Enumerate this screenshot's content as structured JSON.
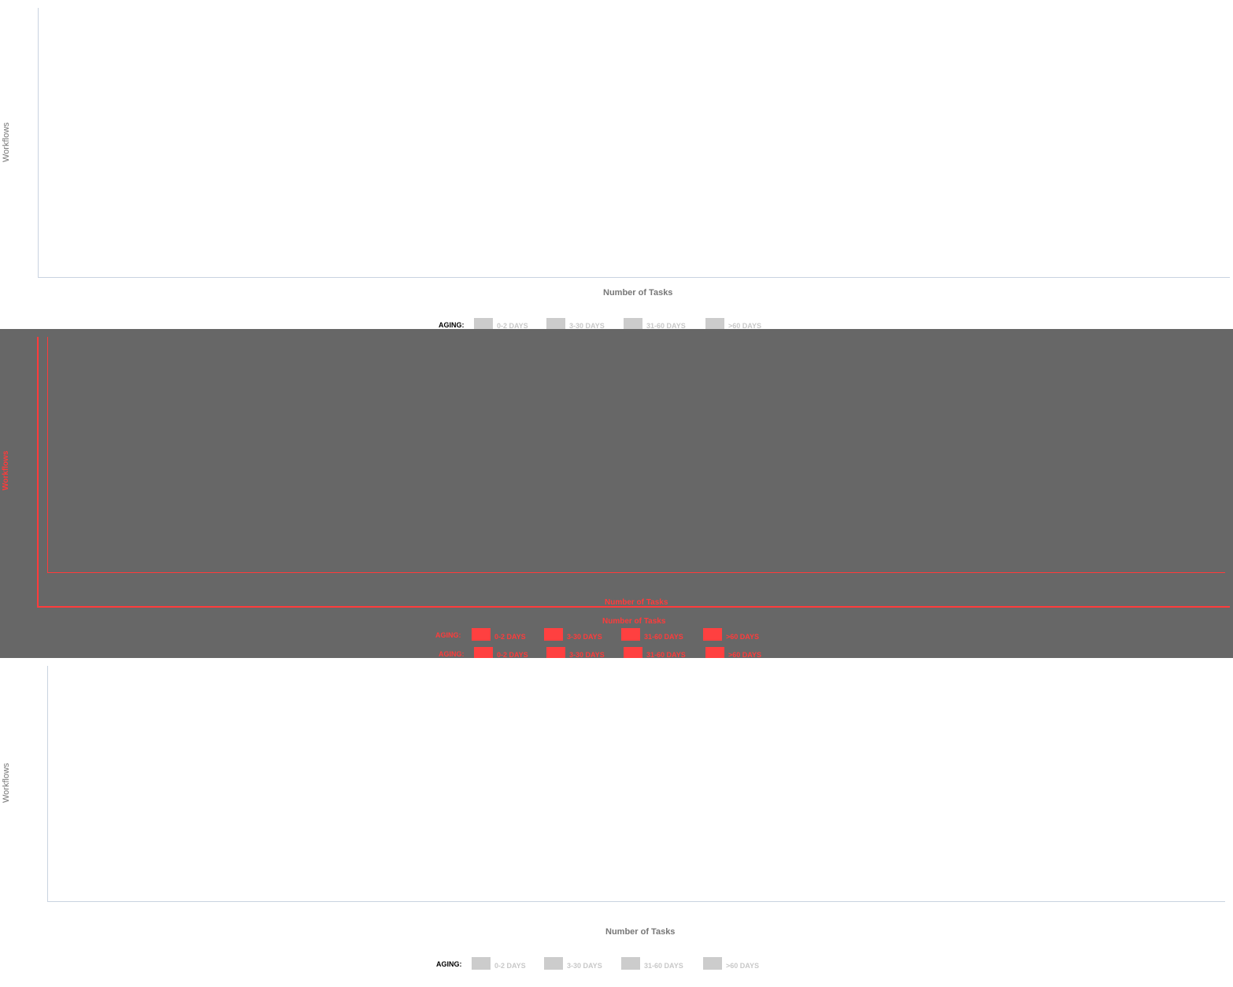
{
  "colors": {
    "axis": "#c9d3e0",
    "label": "#777777",
    "swatch_gray": "#cccccc",
    "overlay_bg": "#676767",
    "overlay_red": "#ff3b3b"
  },
  "chart_top": {
    "ylabel": "Workflows",
    "xlabel": "Number of Tasks",
    "legend": {
      "title": "AGING:",
      "items": [
        "0-2 DAYS",
        "3-30 DAYS",
        "31-60 DAYS",
        ">60 DAYS"
      ]
    }
  },
  "overlay": {
    "ylabel": "Workflows",
    "xlabel_a": "Number of Tasks",
    "xlabel_b": "Number of Tasks",
    "legend_a": {
      "title": "AGING:",
      "items": [
        "0-2 DAYS",
        "3-30 DAYS",
        "31-60 DAYS",
        ">60 DAYS"
      ]
    },
    "legend_b": {
      "title": "AGING:",
      "items": [
        "0-2 DAYS",
        "3-30 DAYS",
        "31-60 DAYS",
        ">60 DAYS"
      ]
    }
  },
  "chart_bottom": {
    "ylabel": "Workflows",
    "xlabel": "Number of Tasks",
    "legend": {
      "title": "AGING:",
      "items": [
        "0-2 DAYS",
        "3-30 DAYS",
        "31-60 DAYS",
        ">60 DAYS"
      ]
    }
  }
}
